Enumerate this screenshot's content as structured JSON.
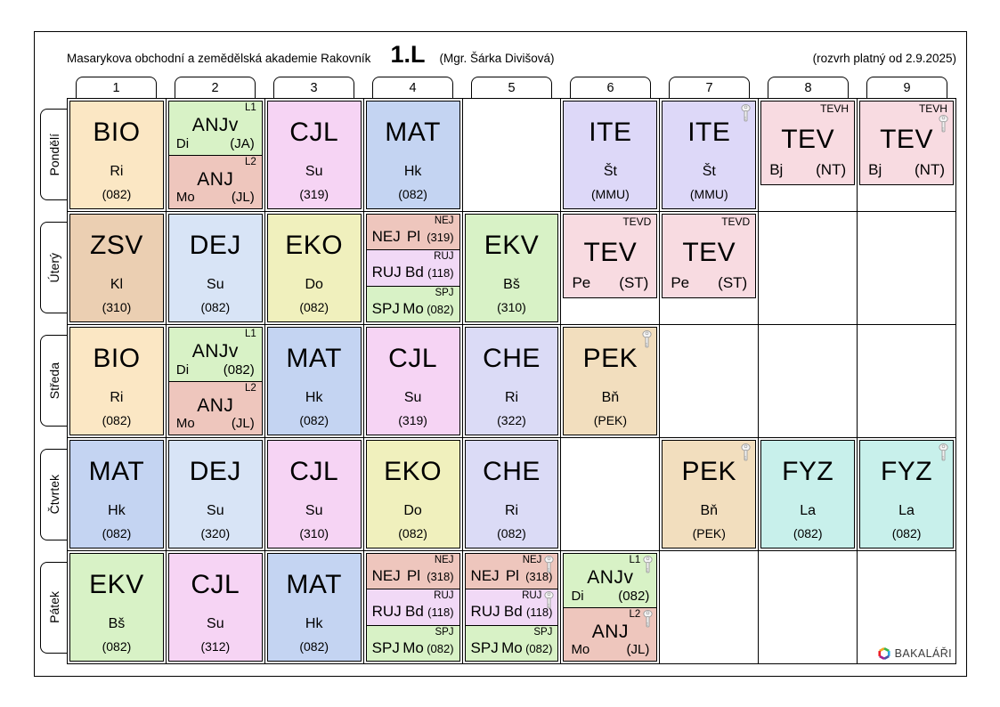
{
  "header": {
    "school": "Masarykova obchodní a zemědělská akademie Rakovník",
    "class_name": "1.L",
    "class_teacher": "(Mgr. Šárka Divišová)",
    "validity": "(rozvrh platný od 2.9.2025)"
  },
  "periods": [
    "1",
    "2",
    "3",
    "4",
    "5",
    "6",
    "7",
    "8",
    "9"
  ],
  "colors": {
    "wheat": "#fbe7c4",
    "green": "#d8f2c6",
    "salmon": "#eec6bd",
    "magenta": "#f6d4f4",
    "blue": "#c4d4f2",
    "lavender": "#ddd8f8",
    "rose": "#f8dbe1",
    "tan": "#ebcfb2",
    "lightblue": "#d8e4f6",
    "yellow": "#f0f0bd",
    "violet": "#f1d9f6",
    "chelav": "#dbdbf6",
    "tan2": "#f2debe",
    "cyan": "#c8f0eb"
  },
  "days": [
    {
      "label": "Pondělí",
      "slug": "pondeli",
      "cells": [
        {
          "kind": "full",
          "layout": "stack",
          "subject": "BIO",
          "teacher": "Ri",
          "room": "(082)",
          "color": "wheat"
        },
        {
          "kind": "split",
          "parts": [
            {
              "group": "L1",
              "subject": "ANJv",
              "teacher": "Di",
              "room": "(JA)",
              "color": "green",
              "key": false
            },
            {
              "group": "L2",
              "subject": "ANJ",
              "teacher": "Mo",
              "room": "(JL)",
              "color": "salmon",
              "key": false
            }
          ]
        },
        {
          "kind": "full",
          "layout": "stack",
          "subject": "CJL",
          "teacher": "Su",
          "room": "(319)",
          "color": "magenta"
        },
        {
          "kind": "full",
          "layout": "stack",
          "subject": "MAT",
          "teacher": "Hk",
          "room": "(082)",
          "color": "blue"
        },
        null,
        {
          "kind": "full",
          "layout": "stack",
          "subject": "ITE",
          "teacher": "Št",
          "room": "(MMU)",
          "color": "lavender"
        },
        {
          "kind": "full",
          "layout": "stack",
          "subject": "ITE",
          "teacher": "Št",
          "room": "(MMU)",
          "color": "lavender",
          "key": true
        },
        {
          "kind": "full",
          "layout": "spread",
          "group": "TEVH",
          "subject": "TEV",
          "teacher": "Bj",
          "room": "(NT)",
          "color": "rose",
          "short": true
        },
        {
          "kind": "full",
          "layout": "spread",
          "group": "TEVH",
          "subject": "TEV",
          "teacher": "Bj",
          "room": "(NT)",
          "color": "rose",
          "short": true,
          "key": true
        }
      ]
    },
    {
      "label": "Úterý",
      "slug": "utery",
      "cells": [
        {
          "kind": "full",
          "layout": "stack",
          "subject": "ZSV",
          "teacher": "Kl",
          "room": "(310)",
          "color": "tan"
        },
        {
          "kind": "full",
          "layout": "stack",
          "subject": "DEJ",
          "teacher": "Su",
          "room": "(082)",
          "color": "lightblue"
        },
        {
          "kind": "full",
          "layout": "stack",
          "subject": "EKO",
          "teacher": "Do",
          "room": "(082)",
          "color": "yellow"
        },
        {
          "kind": "split",
          "parts": [
            {
              "group": "NEJ",
              "subject": "NEJ",
              "teacher": "Pl",
              "room": "(319)",
              "color": "salmon",
              "key": false
            },
            {
              "group": "RUJ",
              "subject": "RUJ",
              "teacher": "Bd",
              "room": "(118)",
              "color": "violet",
              "key": false
            },
            {
              "group": "SPJ",
              "subject": "SPJ",
              "teacher": "Mo",
              "room": "(082)",
              "color": "green",
              "key": false
            }
          ]
        },
        {
          "kind": "full",
          "layout": "stack",
          "subject": "EKV",
          "teacher": "Bš",
          "room": "(310)",
          "color": "green"
        },
        {
          "kind": "full",
          "layout": "spread",
          "group": "TEVD",
          "subject": "TEV",
          "teacher": "Pe",
          "room": "(ST)",
          "color": "rose",
          "short": true
        },
        {
          "kind": "full",
          "layout": "spread",
          "group": "TEVD",
          "subject": "TEV",
          "teacher": "Pe",
          "room": "(ST)",
          "color": "rose",
          "short": true
        },
        null,
        null
      ]
    },
    {
      "label": "Středa",
      "slug": "streda",
      "cells": [
        {
          "kind": "full",
          "layout": "stack",
          "subject": "BIO",
          "teacher": "Ri",
          "room": "(082)",
          "color": "wheat"
        },
        {
          "kind": "split",
          "parts": [
            {
              "group": "L1",
              "subject": "ANJv",
              "teacher": "Di",
              "room": "(082)",
              "color": "green",
              "key": false
            },
            {
              "group": "L2",
              "subject": "ANJ",
              "teacher": "Mo",
              "room": "(JL)",
              "color": "salmon",
              "key": false
            }
          ]
        },
        {
          "kind": "full",
          "layout": "stack",
          "subject": "MAT",
          "teacher": "Hk",
          "room": "(082)",
          "color": "blue"
        },
        {
          "kind": "full",
          "layout": "stack",
          "subject": "CJL",
          "teacher": "Su",
          "room": "(319)",
          "color": "magenta"
        },
        {
          "kind": "full",
          "layout": "stack",
          "subject": "CHE",
          "teacher": "Ri",
          "room": "(322)",
          "color": "chelav"
        },
        {
          "kind": "full",
          "layout": "stack",
          "subject": "PEK",
          "teacher": "Bň",
          "room": "(PEK)",
          "color": "tan2",
          "key": true
        },
        null,
        null,
        null
      ]
    },
    {
      "label": "Čtvrtek",
      "slug": "ctvrtek",
      "cells": [
        {
          "kind": "full",
          "layout": "stack",
          "subject": "MAT",
          "teacher": "Hk",
          "room": "(082)",
          "color": "blue"
        },
        {
          "kind": "full",
          "layout": "stack",
          "subject": "DEJ",
          "teacher": "Su",
          "room": "(320)",
          "color": "lightblue"
        },
        {
          "kind": "full",
          "layout": "stack",
          "subject": "CJL",
          "teacher": "Su",
          "room": "(310)",
          "color": "magenta"
        },
        {
          "kind": "full",
          "layout": "stack",
          "subject": "EKO",
          "teacher": "Do",
          "room": "(082)",
          "color": "yellow"
        },
        {
          "kind": "full",
          "layout": "stack",
          "subject": "CHE",
          "teacher": "Ri",
          "room": "(082)",
          "color": "chelav"
        },
        null,
        {
          "kind": "full",
          "layout": "stack",
          "subject": "PEK",
          "teacher": "Bň",
          "room": "(PEK)",
          "color": "tan2",
          "key": true
        },
        {
          "kind": "full",
          "layout": "stack",
          "subject": "FYZ",
          "teacher": "La",
          "room": "(082)",
          "color": "cyan"
        },
        {
          "kind": "full",
          "layout": "stack",
          "subject": "FYZ",
          "teacher": "La",
          "room": "(082)",
          "color": "cyan",
          "key": true
        }
      ]
    },
    {
      "label": "Pátek",
      "slug": "patek",
      "cells": [
        {
          "kind": "full",
          "layout": "stack",
          "subject": "EKV",
          "teacher": "Bš",
          "room": "(082)",
          "color": "green"
        },
        {
          "kind": "full",
          "layout": "stack",
          "subject": "CJL",
          "teacher": "Su",
          "room": "(312)",
          "color": "magenta"
        },
        {
          "kind": "full",
          "layout": "stack",
          "subject": "MAT",
          "teacher": "Hk",
          "room": "(082)",
          "color": "blue"
        },
        {
          "kind": "split",
          "parts": [
            {
              "group": "NEJ",
              "subject": "NEJ",
              "teacher": "Pl",
              "room": "(318)",
              "color": "salmon",
              "key": false
            },
            {
              "group": "RUJ",
              "subject": "RUJ",
              "teacher": "Bd",
              "room": "(118)",
              "color": "violet",
              "key": false
            },
            {
              "group": "SPJ",
              "subject": "SPJ",
              "teacher": "Mo",
              "room": "(082)",
              "color": "green",
              "key": false
            }
          ]
        },
        {
          "kind": "split",
          "parts": [
            {
              "group": "NEJ",
              "subject": "NEJ",
              "teacher": "Pl",
              "room": "(318)",
              "color": "salmon",
              "key": true
            },
            {
              "group": "RUJ",
              "subject": "RUJ",
              "teacher": "Bd",
              "room": "(118)",
              "color": "violet",
              "key": true
            },
            {
              "group": "SPJ",
              "subject": "SPJ",
              "teacher": "Mo",
              "room": "(082)",
              "color": "green",
              "key": false
            }
          ]
        },
        {
          "kind": "split",
          "parts": [
            {
              "group": "L1",
              "subject": "ANJv",
              "teacher": "Di",
              "room": "(082)",
              "color": "green",
              "key": true
            },
            {
              "group": "L2",
              "subject": "ANJ",
              "teacher": "Mo",
              "room": "(JL)",
              "color": "salmon",
              "key": true
            }
          ]
        },
        null,
        null,
        null
      ]
    }
  ],
  "logo": {
    "label": "BAKALÁŘI"
  }
}
